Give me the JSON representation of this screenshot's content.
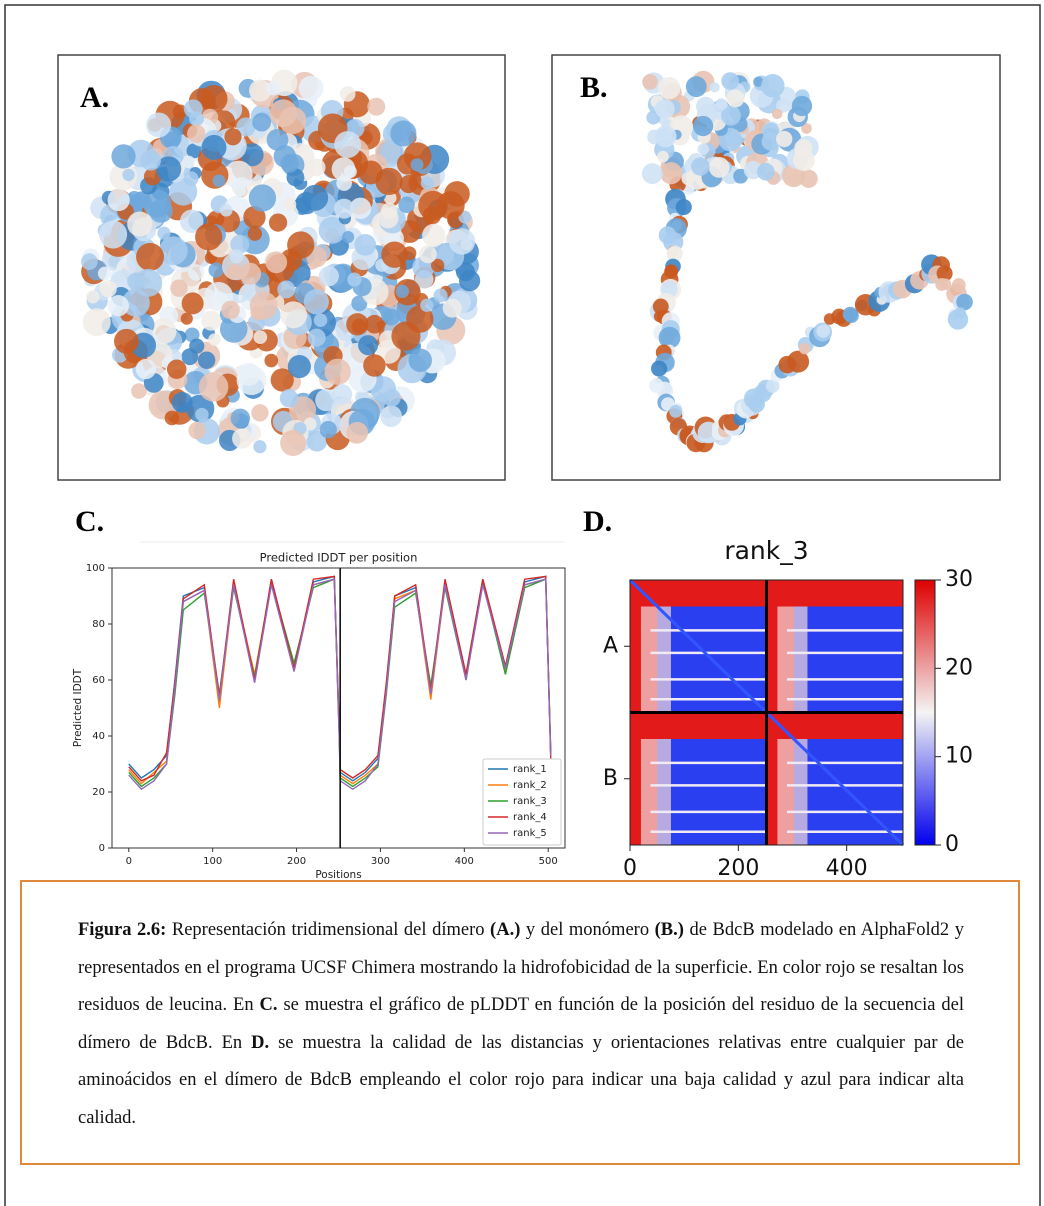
{
  "panels": {
    "a": "A.",
    "b": "B.",
    "c": "C.",
    "d": "D."
  },
  "chart_data": [
    {
      "type": "line",
      "title": "Predicted IDDT per position",
      "x_label": "Positions",
      "y_label": "Predicted IDDT",
      "x": [
        0,
        15,
        30,
        45,
        55,
        65,
        90,
        108,
        125,
        150,
        170,
        197,
        220,
        245,
        251,
        252,
        267,
        282,
        297,
        307,
        317,
        342,
        360,
        377,
        402,
        422,
        449,
        472,
        497,
        503
      ],
      "series": [
        {
          "name": "rank_1",
          "color": "#1f77b4",
          "values": [
            30,
            25,
            28,
            33,
            60,
            90,
            93,
            52,
            95,
            60,
            96,
            64,
            95,
            97,
            40,
            27,
            24,
            27,
            32,
            58,
            90,
            93,
            55,
            95,
            62,
            96,
            64,
            95,
            97,
            33
          ]
        },
        {
          "name": "rank_2",
          "color": "#ff7f0e",
          "values": [
            28,
            23,
            27,
            31,
            58,
            88,
            92,
            50,
            94,
            62,
            95,
            65,
            94,
            96,
            42,
            26,
            23,
            26,
            30,
            57,
            89,
            92,
            53,
            94,
            61,
            95,
            63,
            94,
            96,
            35
          ]
        },
        {
          "name": "rank_3",
          "color": "#2ca02c",
          "values": [
            27,
            22,
            25,
            30,
            55,
            85,
            91,
            55,
            93,
            61,
            95,
            66,
            93,
            96,
            38,
            25,
            22,
            25,
            29,
            55,
            86,
            91,
            58,
            93,
            60,
            95,
            62,
            93,
            96,
            34
          ]
        },
        {
          "name": "rank_4",
          "color": "#d62728",
          "values": [
            29,
            24,
            26,
            34,
            59,
            89,
            94,
            54,
            96,
            60,
            96,
            64,
            96,
            97,
            41,
            28,
            25,
            28,
            33,
            59,
            90,
            94,
            56,
            96,
            62,
            96,
            65,
            96,
            97,
            32
          ]
        },
        {
          "name": "rank_5",
          "color": "#9467bd",
          "values": [
            26,
            21,
            24,
            30,
            57,
            88,
            92,
            53,
            94,
            59,
            94,
            63,
            94,
            96,
            39,
            24,
            21,
            24,
            30,
            56,
            88,
            92,
            55,
            94,
            60,
            94,
            64,
            94,
            96,
            33
          ]
        }
      ],
      "divider_x": 252,
      "xlim": [
        -20,
        520
      ],
      "xticks": [
        0,
        100,
        200,
        300,
        400,
        500
      ],
      "ylim": [
        0,
        100
      ],
      "yticks": [
        0,
        20,
        40,
        60,
        80,
        100
      ],
      "legend": "lower right"
    },
    {
      "type": "heatmap",
      "title": "rank_3",
      "categories": [
        "A",
        "B"
      ],
      "xlim": [
        0,
        504
      ],
      "xticks": [
        0,
        200,
        400
      ],
      "divider_x": 252,
      "colorbar": {
        "lim": [
          0,
          30
        ],
        "ticks": [
          0,
          10,
          20,
          30
        ]
      }
    }
  ],
  "caption": [
    {
      "text": "Figura 2.6:",
      "bold": true
    },
    {
      "text": " Representación tridimensional del dímero ",
      "bold": false
    },
    {
      "text": "(A.)",
      "bold": true
    },
    {
      "text": " y del monómero ",
      "bold": false
    },
    {
      "text": "(B.)",
      "bold": true
    },
    {
      "text": " de BdcB modelado en AlphaFold2 y representados en el programa UCSF Chimera mostrando la hidrofobicidad de la superficie. En color rojo se resaltan los residuos de leucina. En ",
      "bold": false
    },
    {
      "text": "C.",
      "bold": true
    },
    {
      "text": " se muestra el gráfico de pLDDT en función de la posición del residuo de la secuencia del dímero de BdcB. En ",
      "bold": false
    },
    {
      "text": "D.",
      "bold": true
    },
    {
      "text": " se muestra la calidad de las distancias y orientaciones relativas entre cualquier par de aminoácidos en el dímero de BdcB empleando el color rojo para indicar una baja calidad y azul para indicar alta calidad.",
      "bold": false
    }
  ]
}
